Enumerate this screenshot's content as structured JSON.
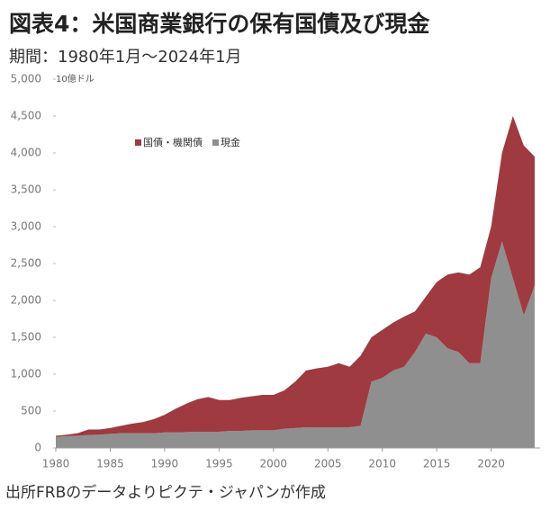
{
  "chart_data": {
    "type": "stacked_area",
    "title": "図表4：米国商業銀行の保有国債及び現金",
    "subtitle": "期間：1980年1月～2024年1月",
    "y_unit": "10億ドル",
    "source": "出所FRBのデータよりピクテ・ジャパンが作成",
    "x": [
      1980,
      1981,
      1982,
      1983,
      1984,
      1985,
      1986,
      1987,
      1988,
      1989,
      1990,
      1991,
      1992,
      1993,
      1994,
      1995,
      1996,
      1997,
      1998,
      1999,
      2000,
      2001,
      2002,
      2003,
      2004,
      2005,
      2006,
      2007,
      2008,
      2009,
      2010,
      2011,
      2012,
      2013,
      2014,
      2015,
      2016,
      2017,
      2018,
      2019,
      2020,
      2021,
      2022,
      2023,
      2024
    ],
    "series": [
      {
        "name": "現金",
        "color": "#8f8f8f",
        "values": [
          150,
          160,
          165,
          175,
          180,
          190,
          200,
          200,
          200,
          200,
          210,
          210,
          215,
          220,
          220,
          220,
          230,
          230,
          240,
          240,
          240,
          260,
          270,
          280,
          280,
          280,
          280,
          280,
          300,
          900,
          950,
          1050,
          1100,
          1300,
          1550,
          1500,
          1350,
          1300,
          1150,
          1150,
          2300,
          2800,
          2300,
          1800,
          2200
        ]
      },
      {
        "name": "国債・機関債",
        "color": "#9e3a40",
        "values": [
          15,
          20,
          35,
          75,
          70,
          80,
          100,
          130,
          150,
          190,
          240,
          320,
          385,
          440,
          470,
          430,
          420,
          450,
          460,
          480,
          480,
          520,
          630,
          770,
          800,
          820,
          870,
          820,
          950,
          600,
          650,
          650,
          680,
          550,
          500,
          750,
          1000,
          1080,
          1200,
          1300,
          700,
          1200,
          2200,
          2300,
          1750
        ]
      }
    ],
    "xlim": [
      1980,
      2024.5
    ],
    "xticks": [
      1980,
      1985,
      1990,
      1995,
      2000,
      2005,
      2010,
      2015,
      2020
    ],
    "ylim": [
      0,
      5000
    ],
    "yticks": [
      0,
      500,
      {
        "value": 1000,
        "label": "1,000"
      },
      {
        "value": 1500,
        "label": "1,500"
      },
      {
        "value": 2000,
        "label": "2,000"
      },
      {
        "value": 2500,
        "label": "2,500"
      },
      {
        "value": 3000,
        "label": "3,000"
      },
      {
        "value": 3500,
        "label": "3,500"
      },
      {
        "value": 4000,
        "label": "4,000"
      },
      {
        "value": 4500,
        "label": "4,500"
      },
      {
        "value": 5000,
        "label": "5,000"
      }
    ]
  }
}
